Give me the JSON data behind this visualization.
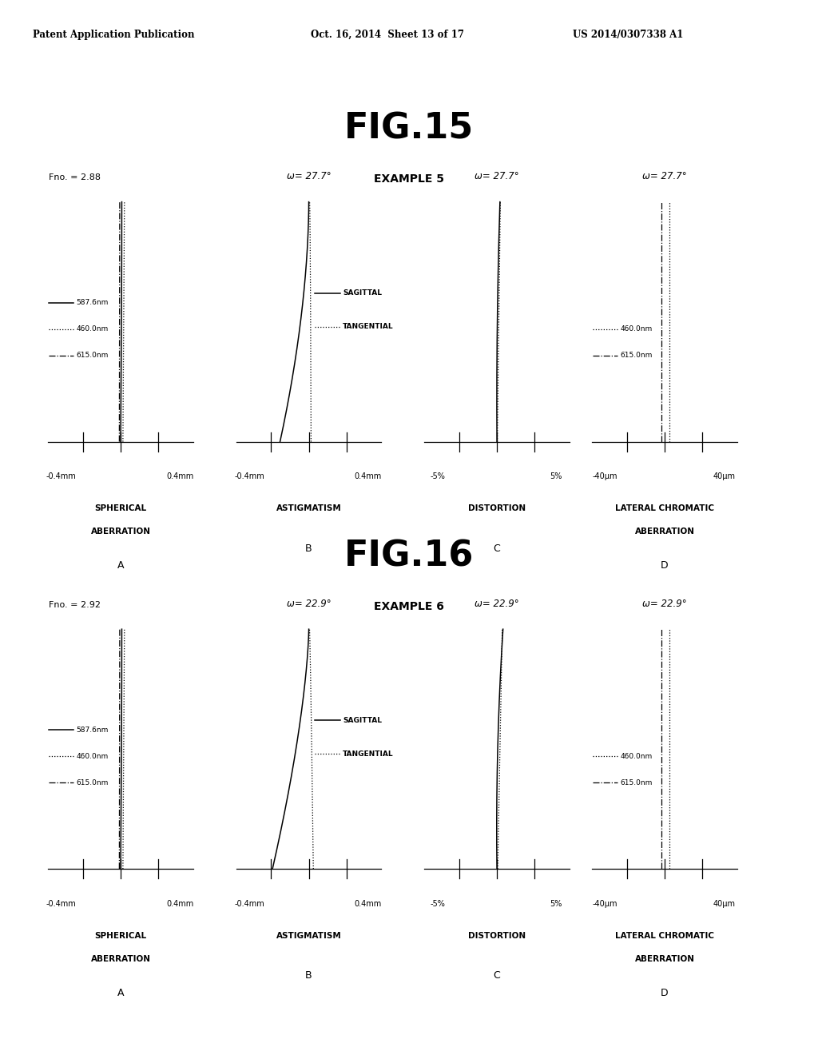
{
  "header_text": "Patent Application Publication",
  "header_date": "Oct. 16, 2014  Sheet 13 of 17",
  "header_patent": "US 2014/0307338 A1",
  "fig1": {
    "title": "FIG.15",
    "example": "EXAMPLE 5",
    "fno": "Fno. = 2.88",
    "omega": "ω= 27.7°"
  },
  "fig2": {
    "title": "FIG.16",
    "example": "EXAMPLE 6",
    "fno": "Fno. = 2.92",
    "omega": "ω= 22.9°"
  },
  "panel_titles": [
    "SPHERICAL\nABERRATION",
    "ASTIGMATISM",
    "DISTORTION",
    "LATERAL CHROMATIC\nABERRATION"
  ],
  "panel_letters": [
    "A",
    "B",
    "C",
    "D"
  ],
  "xlabels": [
    [
      "-0.4mm",
      "0.4mm"
    ],
    [
      "-0.4mm",
      "0.4mm"
    ],
    [
      "-5%",
      "5%"
    ],
    [
      "-40μm",
      "40μm"
    ]
  ],
  "legend_A": [
    "587.6nm",
    "460.0nm",
    "615.0nm"
  ],
  "legend_B": [
    "SAGITTAL",
    "TANGENTIAL"
  ],
  "legend_D": [
    "460.0nm",
    "615.0nm"
  ],
  "bg_color": "#ffffff"
}
